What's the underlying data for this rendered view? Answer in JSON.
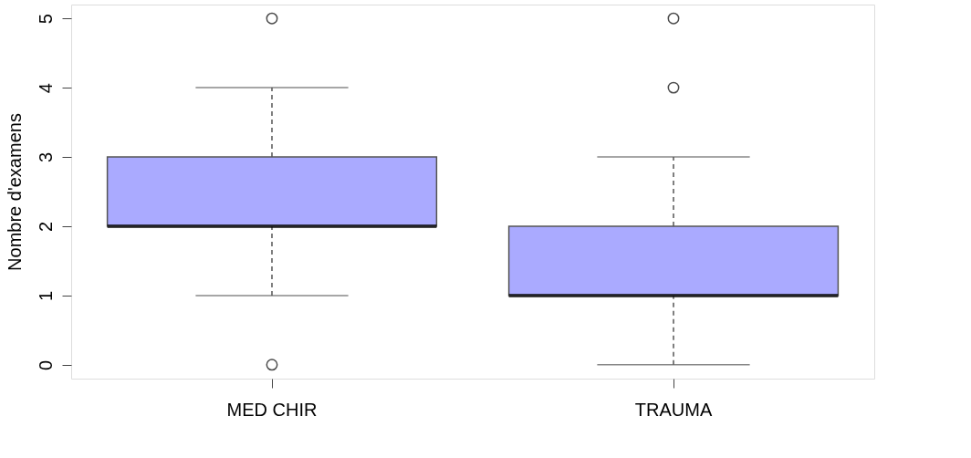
{
  "chart_data": {
    "type": "box",
    "ylabel": "Nombre d'examens",
    "categories": [
      "MED CHIR",
      "TRAUMA"
    ],
    "series": [
      {
        "color": "#aaaaff",
        "boxes": [
          {
            "low": 1,
            "q1": 2,
            "median": 2,
            "q3": 3,
            "high": 4,
            "outliers": [
              0,
              5
            ]
          },
          {
            "low": 0,
            "q1": 1,
            "median": 1,
            "q3": 2,
            "high": 3,
            "outliers": [
              4,
              5
            ]
          }
        ]
      }
    ],
    "ylim": [
      -0.2,
      5.2
    ],
    "yticks": [
      0,
      1,
      2,
      3,
      4,
      5
    ],
    "line_style": "dashed"
  }
}
